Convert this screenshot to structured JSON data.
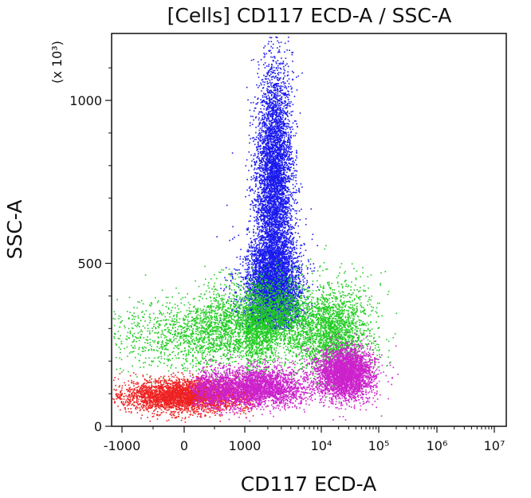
{
  "chart_data": {
    "type": "scatter",
    "title": "[Cells] CD117 ECD-A / SSC-A",
    "xlabel": "CD117 ECD-A",
    "ylabel": "SSC-A",
    "y_scale_note": "(x 10³)",
    "x_scale": "biexponential (linear near 0, logarithmic above ~1000)",
    "y_scale": "linear",
    "ylim": [
      0,
      1200
    ],
    "xlim": [
      -1200,
      12000000
    ],
    "x_ticks": [
      "-1000",
      "0",
      "1000",
      "10⁴",
      "10⁵",
      "10⁶",
      "10⁷"
    ],
    "x_tick_values": [
      -1000,
      0,
      1000,
      10000,
      100000,
      1000000,
      10000000
    ],
    "y_ticks": [
      "0",
      "500",
      "1000"
    ],
    "y_tick_values": [
      0,
      500,
      1000
    ],
    "grid": false,
    "legend": "none",
    "series": [
      {
        "color": "#1a1aee",
        "count": 9000,
        "clusters": [
          {
            "x_center": 2400,
            "x_spread_decades": 0.12,
            "y_range": [
              360,
              1200
            ],
            "y_center": 760,
            "y_spread": 170
          },
          {
            "x_center": 2300,
            "x_spread_decades": 0.18,
            "y_range": [
              300,
              700
            ],
            "y_center": 420,
            "y_spread": 80
          }
        ]
      },
      {
        "color": "#22cc22",
        "count": 6500,
        "clusters": [
          {
            "x_center": 500,
            "x_spread": 900,
            "y_center": 280,
            "y_spread": 55
          },
          {
            "x_center": 2000,
            "x_spread_decades": 0.35,
            "y_center": 340,
            "y_spread": 60
          },
          {
            "x_center": 15000,
            "x_spread_decades": 0.35,
            "y_center": 290,
            "y_spread": 70
          }
        ]
      },
      {
        "color": "#ee2222",
        "count": 3500,
        "clusters": [
          {
            "x_center": 0,
            "x_spread": 500,
            "y_center": 95,
            "y_spread": 25
          }
        ]
      },
      {
        "color": "#cc22cc",
        "count": 6500,
        "clusters": [
          {
            "x_center": 1200,
            "x_spread_decades": 0.35,
            "y_center": 120,
            "y_spread": 30
          },
          {
            "x_center": 25000,
            "x_spread_decades": 0.25,
            "y_center": 165,
            "y_spread": 40
          }
        ]
      }
    ]
  }
}
